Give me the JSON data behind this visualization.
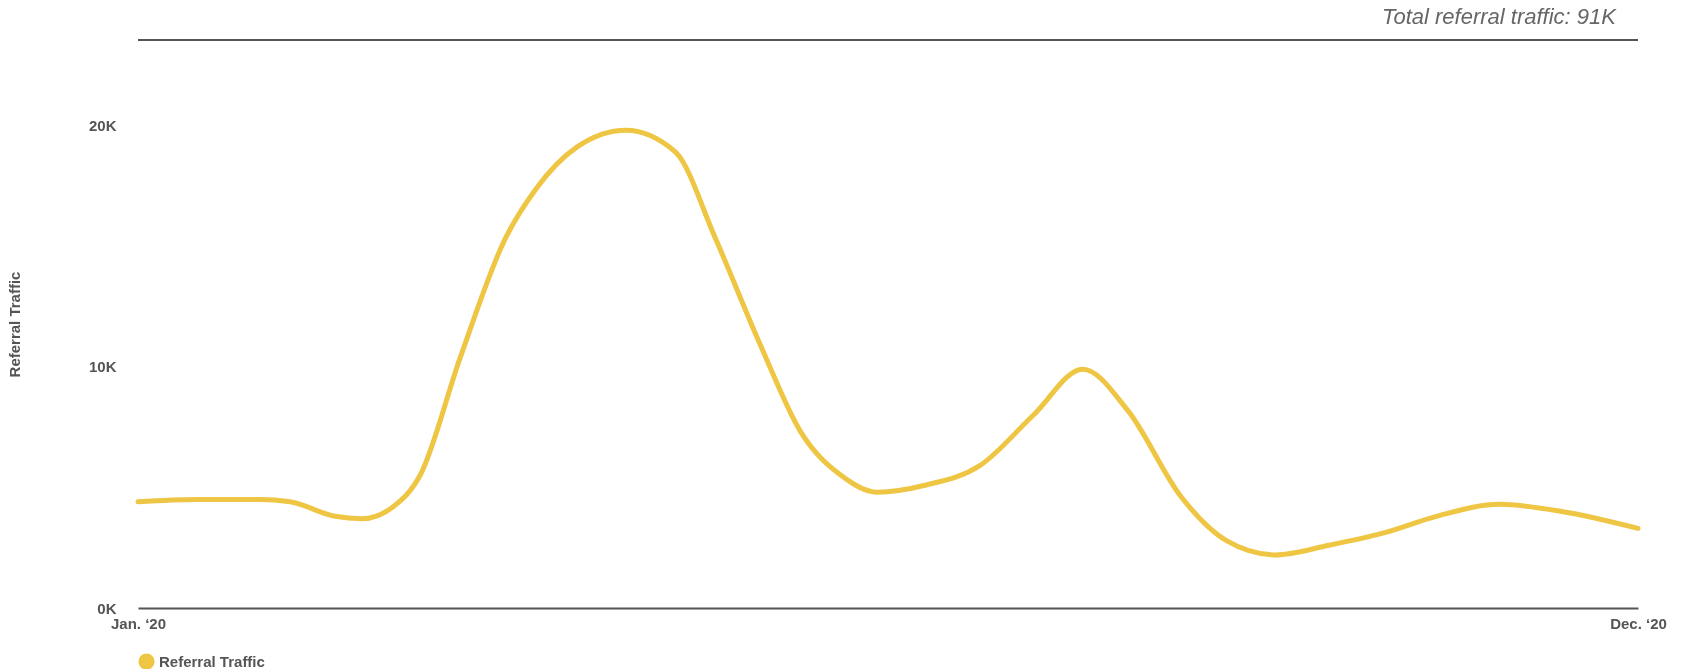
{
  "chart_data": {
    "type": "line",
    "annotations": [
      "Total referral traffic: 91K"
    ],
    "ylabel": "Referral Traffic",
    "x": [
      "2020-01-01",
      "2020-01-14",
      "2020-01-28",
      "2020-02-04",
      "2020-02-14",
      "2020-02-20",
      "2020-02-27",
      "2020-03-04",
      "2020-03-13",
      "2020-03-23",
      "2020-03-30",
      "2020-04-08",
      "2020-04-19",
      "2020-04-30",
      "2020-05-09",
      "2020-05-19",
      "2020-05-28",
      "2020-06-06",
      "2020-06-14",
      "2020-06-25",
      "2020-07-07",
      "2020-07-19",
      "2020-07-30",
      "2020-08-09",
      "2020-08-21",
      "2020-08-31",
      "2020-09-11",
      "2020-09-23",
      "2020-10-05",
      "2020-10-17",
      "2020-10-31",
      "2020-11-14",
      "2020-12-01"
    ],
    "series": [
      {
        "name": "Referral Traffic",
        "color": "#eec643",
        "values": [
          4400,
          4500,
          4500,
          4400,
          3800,
          3700,
          4200,
          5500,
          10400,
          15300,
          17400,
          19100,
          19800,
          18900,
          15300,
          10900,
          7300,
          5500,
          4800,
          5100,
          5900,
          8000,
          9900,
          8200,
          4600,
          2800,
          2200,
          2600,
          3100,
          3800,
          4300,
          4000,
          3300
        ]
      }
    ],
    "xlim": [
      "2020-01-01",
      "2020-12-01"
    ],
    "xticks": [
      {
        "value": "2020-01-01",
        "label": "Jan. ‘20"
      },
      {
        "value": "2020-12-01",
        "label": "Dec. ‘20"
      }
    ],
    "ylim": [
      0,
      23500
    ],
    "yticks": [
      {
        "value": 0,
        "label": "0K"
      },
      {
        "value": 10000,
        "label": "10K"
      },
      {
        "value": 20000,
        "label": "20K"
      }
    ],
    "grid": false,
    "legend": "bottom",
    "marker": "none",
    "line_style": "solid"
  }
}
